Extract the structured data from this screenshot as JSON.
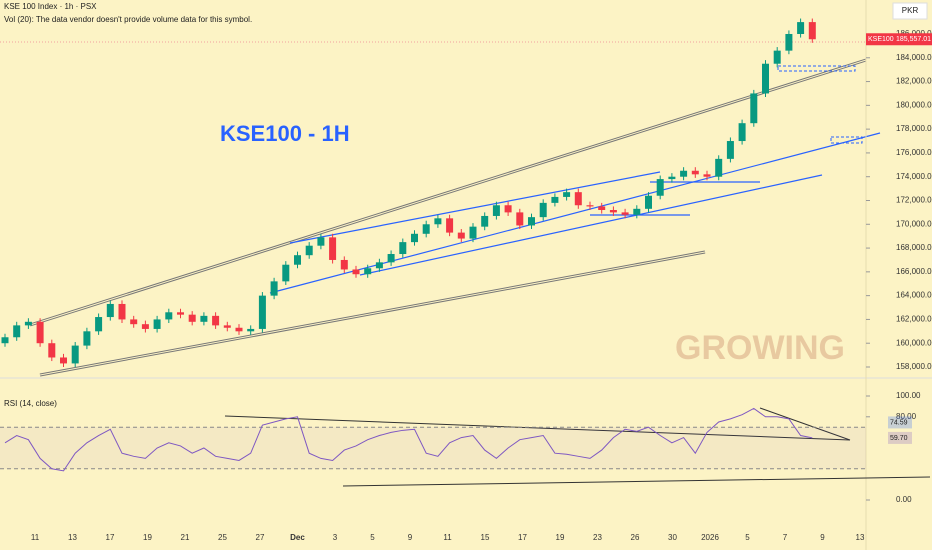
{
  "chart_data": {
    "type": "candlestick",
    "symbol": "KSE 100 Index · 1h · PSX",
    "volume_note": "Vol (20): The data vendor doesn't provide volume data for this symbol.",
    "currency": "PKR",
    "ticker": "KSE100",
    "annotation": "KSE100 - 1H",
    "watermark": "GROWING",
    "last_price": {
      "value": 185557.01,
      "label": "185,557.01"
    },
    "up_color": "#089981",
    "down_color": "#f23645",
    "ylim": [
      157327,
      188858
    ],
    "yticks": [
      {
        "value": 158000,
        "label": "158,000.00"
      },
      {
        "value": 160000,
        "label": "160,000.00"
      },
      {
        "value": 162000,
        "label": "162,000.00"
      },
      {
        "value": 164000,
        "label": "164,000.00"
      },
      {
        "value": 166000,
        "label": "166,000.00"
      },
      {
        "value": 168000,
        "label": "168,000.00"
      },
      {
        "value": 170000,
        "label": "170,000.00"
      },
      {
        "value": 172000,
        "label": "172,000.00"
      },
      {
        "value": 174000,
        "label": "174,000.00"
      },
      {
        "value": 176000,
        "label": "176,000.00"
      },
      {
        "value": 178000,
        "label": "178,000.00"
      },
      {
        "value": 180000,
        "label": "180,000.00"
      },
      {
        "value": 182000,
        "label": "182,000.00"
      },
      {
        "value": 184000,
        "label": "184,000.00"
      },
      {
        "value": 186000,
        "label": "186,000.00"
      }
    ],
    "x_labels": [
      "11",
      "13",
      "17",
      "19",
      "21",
      "25",
      "27",
      "Dec",
      "3",
      "5",
      "9",
      "11",
      "15",
      "17",
      "19",
      "23",
      "26",
      "30",
      "2026",
      "5",
      "7",
      "9",
      "13"
    ],
    "open": [
      160000,
      160500,
      161500,
      161800,
      160000,
      158800,
      158300,
      159800,
      161000,
      162200,
      163300,
      162000,
      161600,
      161200,
      162000,
      162600,
      162400,
      161800,
      162300,
      161500,
      161300,
      161000,
      161200,
      164000,
      165200,
      166600,
      167400,
      168200,
      168900,
      167000,
      166200,
      165800,
      166300,
      166800,
      167500,
      168500,
      169200,
      170000,
      170500,
      169300,
      168800,
      169800,
      170700,
      171600,
      171000,
      169900,
      170600,
      171800,
      172300,
      172700,
      171600,
      171500,
      171200,
      171000,
      170800,
      171300,
      172400,
      173800,
      174000,
      174500,
      174200,
      174000,
      175500,
      177000,
      178500,
      181000,
      183500,
      184600,
      186000,
      187000
    ],
    "high": [
      160800,
      161800,
      162100,
      162100,
      160300,
      159100,
      160100,
      161300,
      162500,
      163600,
      163600,
      162300,
      161900,
      162300,
      162900,
      162900,
      162700,
      162600,
      162600,
      161800,
      161600,
      161500,
      164300,
      165500,
      166900,
      167700,
      168500,
      169200,
      169200,
      167300,
      166500,
      166600,
      167100,
      167800,
      168800,
      169500,
      170300,
      170800,
      170800,
      169600,
      170100,
      171000,
      171900,
      171900,
      171300,
      170900,
      172100,
      172600,
      173000,
      173000,
      171900,
      171800,
      171500,
      171300,
      171600,
      172700,
      174100,
      174300,
      174800,
      174800,
      174500,
      175800,
      177300,
      178800,
      181300,
      183800,
      184900,
      186300,
      187300,
      187300
    ],
    "low": [
      159700,
      160200,
      161200,
      159700,
      158500,
      158000,
      158000,
      159500,
      160700,
      161900,
      161700,
      161300,
      160900,
      160900,
      161700,
      162100,
      161500,
      161500,
      161200,
      161000,
      160700,
      160700,
      160900,
      163700,
      164900,
      166300,
      167100,
      167900,
      166700,
      165900,
      165500,
      165500,
      166000,
      166500,
      167200,
      168200,
      168900,
      169700,
      169000,
      168500,
      168500,
      169500,
      170400,
      170700,
      169600,
      169600,
      170300,
      171500,
      172000,
      171300,
      171200,
      170900,
      170700,
      170500,
      170500,
      171000,
      172100,
      173500,
      173700,
      173900,
      173700,
      173700,
      175200,
      176700,
      178200,
      180700,
      183200,
      184300,
      185700,
      185257
    ],
    "close": [
      160500,
      161500,
      161800,
      160000,
      158800,
      158300,
      159800,
      161000,
      162200,
      163300,
      162000,
      161600,
      161200,
      162000,
      162600,
      162400,
      161800,
      162300,
      161500,
      161300,
      161000,
      161200,
      164000,
      165200,
      166600,
      167400,
      168200,
      168900,
      167000,
      166200,
      165800,
      166300,
      166800,
      167500,
      168500,
      169200,
      170000,
      170500,
      169300,
      168800,
      169800,
      170700,
      171600,
      171000,
      169900,
      170600,
      171800,
      172300,
      172700,
      171600,
      171500,
      171200,
      171000,
      170800,
      171300,
      172400,
      173800,
      174000,
      174500,
      174200,
      174000,
      175500,
      177000,
      178500,
      181000,
      183500,
      184600,
      186000,
      187000,
      185557.01
    ],
    "rsi": {
      "title": "RSI (14, close)",
      "color": "#7e57c2",
      "ylim": [
        0,
        100
      ],
      "yticks": [
        {
          "value": 100,
          "label": "100.00"
        },
        {
          "value": 80,
          "label": "80.00"
        },
        {
          "value": 0,
          "label": "0.00"
        }
      ],
      "band": [
        30,
        70
      ],
      "badges": [
        {
          "value": 74.59,
          "label": "74.59",
          "color": "#2962ff"
        },
        {
          "value": 59.7,
          "label": "59.70",
          "color": "#7e57c2"
        }
      ],
      "values": [
        55,
        62,
        58,
        40,
        30,
        28,
        45,
        55,
        62,
        68,
        45,
        42,
        40,
        50,
        55,
        52,
        45,
        50,
        42,
        40,
        38,
        45,
        72,
        75,
        78,
        80,
        45,
        40,
        38,
        48,
        52,
        58,
        62,
        65,
        67,
        68,
        45,
        42,
        55,
        60,
        62,
        48,
        40,
        50,
        58,
        60,
        62,
        45,
        44,
        42,
        40,
        48,
        60,
        68,
        66,
        70,
        62,
        55,
        60,
        45,
        65,
        75,
        78,
        82,
        88,
        80,
        80,
        78,
        62,
        59.7
      ]
    }
  }
}
